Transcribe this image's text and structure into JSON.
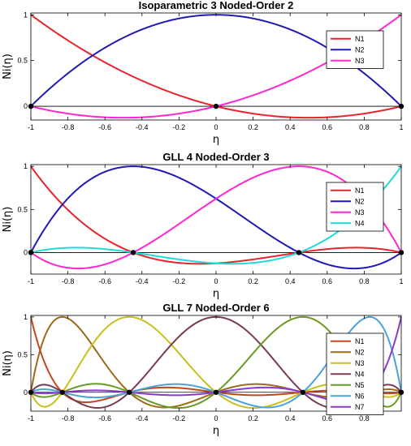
{
  "chart_data": [
    {
      "type": "line",
      "title": "Isoparametric 3 Noded-Order 2",
      "xlabel": "η",
      "ylabel": "Ni(η)",
      "xlim": [
        -1,
        1
      ],
      "ylim": [
        -0.15,
        1.02
      ],
      "xticks": [
        "-1",
        "-0.8",
        "-0.6",
        "-0.4",
        "-0.2",
        "0",
        "0.2",
        "0.4",
        "0.6",
        "0.8",
        "1"
      ],
      "yticks": [
        "0",
        "0.5",
        "1"
      ],
      "nodes": [
        -1,
        0,
        1
      ],
      "legend_position": "top-right",
      "series": [
        {
          "name": "N1",
          "color": "#e8242c",
          "curve": "lagrange",
          "node_index": 0
        },
        {
          "name": "N2",
          "color": "#1f1ab8",
          "curve": "lagrange",
          "node_index": 1
        },
        {
          "name": "N3",
          "color": "#ff26d4",
          "curve": "lagrange",
          "node_index": 2
        }
      ]
    },
    {
      "type": "line",
      "title": "GLL 4 Noded-Order 3",
      "xlabel": "η",
      "ylabel": "Ni(η)",
      "xlim": [
        -1,
        1
      ],
      "ylim": [
        -0.25,
        1.02
      ],
      "xticks": [
        "-1",
        "-0.8",
        "-0.6",
        "-0.4",
        "-0.2",
        "0",
        "0.2",
        "0.4",
        "0.6",
        "0.8",
        "1"
      ],
      "yticks": [
        "0",
        "0.5",
        "1"
      ],
      "nodes": [
        -1,
        -0.4472,
        0.4472,
        1
      ],
      "legend_position": "top-right",
      "series": [
        {
          "name": "N1",
          "color": "#e8242c",
          "curve": "lagrange",
          "node_index": 0
        },
        {
          "name": "N2",
          "color": "#1f1ab8",
          "curve": "lagrange",
          "node_index": 1
        },
        {
          "name": "N3",
          "color": "#ff26d4",
          "curve": "lagrange",
          "node_index": 2
        },
        {
          "name": "N4",
          "color": "#21d9d9",
          "curve": "lagrange",
          "node_index": 3
        }
      ]
    },
    {
      "type": "line",
      "title": "GLL 7 Noded-Order 6",
      "xlabel": "η",
      "ylabel": "Ni(η)",
      "xlim": [
        -1,
        1
      ],
      "ylim": [
        -0.25,
        1.02
      ],
      "xticks": [
        "-1",
        "-0.8",
        "-0.6",
        "-0.4",
        "-0.2",
        "0",
        "0.2",
        "0.4",
        "0.6",
        "0.8"
      ],
      "yticks": [
        "0",
        "0.5",
        "1"
      ],
      "nodes": [
        -1,
        -0.8302,
        -0.4688,
        0,
        0.4688,
        0.8302,
        1
      ],
      "legend_position": "top-right",
      "series": [
        {
          "name": "N1",
          "color": "#c0481c",
          "curve": "lagrange",
          "node_index": 0
        },
        {
          "name": "N2",
          "color": "#9c6a1c",
          "curve": "lagrange",
          "node_index": 1
        },
        {
          "name": "N3",
          "color": "#c8c01c",
          "curve": "lagrange",
          "node_index": 2
        },
        {
          "name": "N4",
          "color": "#7a3a52",
          "curve": "lagrange",
          "node_index": 3
        },
        {
          "name": "N5",
          "color": "#6a9a24",
          "curve": "lagrange",
          "node_index": 4
        },
        {
          "name": "N6",
          "color": "#4aa3d8",
          "curve": "lagrange",
          "node_index": 5
        },
        {
          "name": "N7",
          "color": "#8a3ad0",
          "curve": "lagrange",
          "node_index": 6
        }
      ]
    }
  ]
}
